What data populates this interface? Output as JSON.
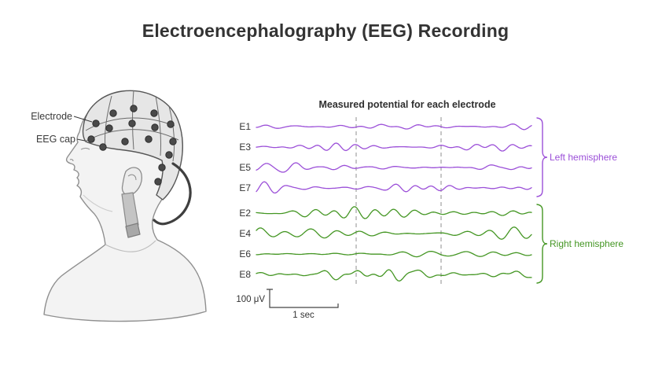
{
  "page": {
    "title": "Electroencephalography (EEG) Recording"
  },
  "illustration": {
    "electrode_label": "Electrode",
    "cap_label": "EEG cap"
  },
  "chart": {
    "title": "Measured potential for each electrode",
    "left_hemisphere": {
      "label": "Left hemisphere",
      "color": "#9b4fd8"
    },
    "right_hemisphere": {
      "label": "Right hemisphere",
      "color": "#449623"
    },
    "scale": {
      "voltage": "100 μV",
      "time": "1 sec"
    }
  },
  "chart_data": {
    "type": "line",
    "title": "Measured potential for each electrode",
    "amplitude_scale": "100 μV",
    "time_scale": "1 sec",
    "approx_duration_seconds": 4,
    "gridline_count": 2,
    "series": [
      {
        "name": "E1",
        "hemisphere": "left",
        "seed": 3
      },
      {
        "name": "E3",
        "hemisphere": "left",
        "seed": 8
      },
      {
        "name": "E5",
        "hemisphere": "left",
        "seed": 15
      },
      {
        "name": "E7",
        "hemisphere": "left",
        "seed": 21
      },
      {
        "name": "E2",
        "hemisphere": "right",
        "seed": 5
      },
      {
        "name": "E4",
        "hemisphere": "right",
        "seed": 11
      },
      {
        "name": "E6",
        "hemisphere": "right",
        "seed": 27
      },
      {
        "name": "E8",
        "hemisphere": "right",
        "seed": 33
      }
    ]
  }
}
